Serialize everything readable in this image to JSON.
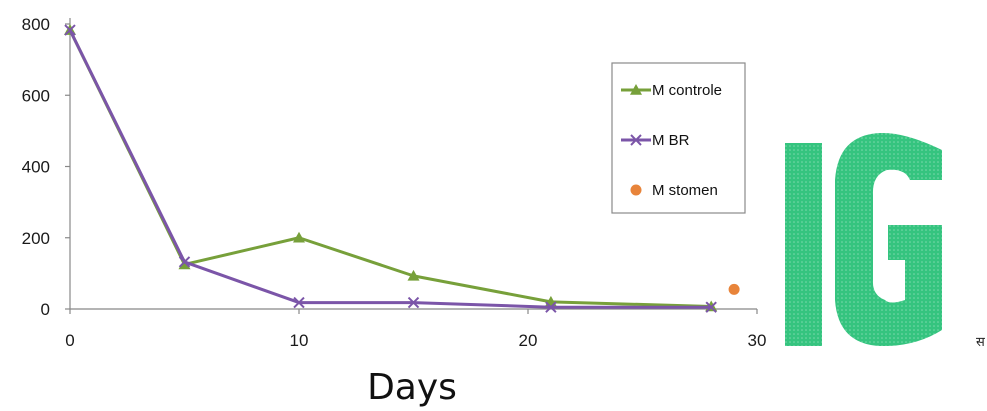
{
  "chart_data": {
    "type": "line",
    "xlabel": "Days",
    "ylabel": "",
    "xlim": [
      0,
      30
    ],
    "ylim": [
      0,
      800
    ],
    "x_ticks": [
      "0",
      "10",
      "20",
      "30"
    ],
    "y_ticks": [
      "0",
      "200",
      "400",
      "600",
      "800"
    ],
    "grid": false,
    "legend_position": "top-right",
    "series": [
      {
        "name": "M controle",
        "color": "#77a03a",
        "marker": "triangle",
        "points": [
          {
            "x": 0,
            "y": 783
          },
          {
            "x": 5,
            "y": 125
          },
          {
            "x": 10,
            "y": 200
          },
          {
            "x": 15,
            "y": 93
          },
          {
            "x": 21,
            "y": 20
          },
          {
            "x": 28,
            "y": 7
          }
        ]
      },
      {
        "name": "M BR",
        "color": "#7b55a8",
        "marker": "x",
        "points": [
          {
            "x": 0,
            "y": 783
          },
          {
            "x": 5,
            "y": 132
          },
          {
            "x": 10,
            "y": 18
          },
          {
            "x": 15,
            "y": 18
          },
          {
            "x": 21,
            "y": 5
          },
          {
            "x": 28,
            "y": 5
          }
        ]
      },
      {
        "name": "M stomen",
        "color": "#e8843a",
        "marker": "circle",
        "points": [
          {
            "x": 29,
            "y": 55
          }
        ]
      }
    ]
  },
  "overlay": {
    "logo_text": "IG",
    "logo_color": "#35c47f",
    "edge_mark": "स"
  }
}
